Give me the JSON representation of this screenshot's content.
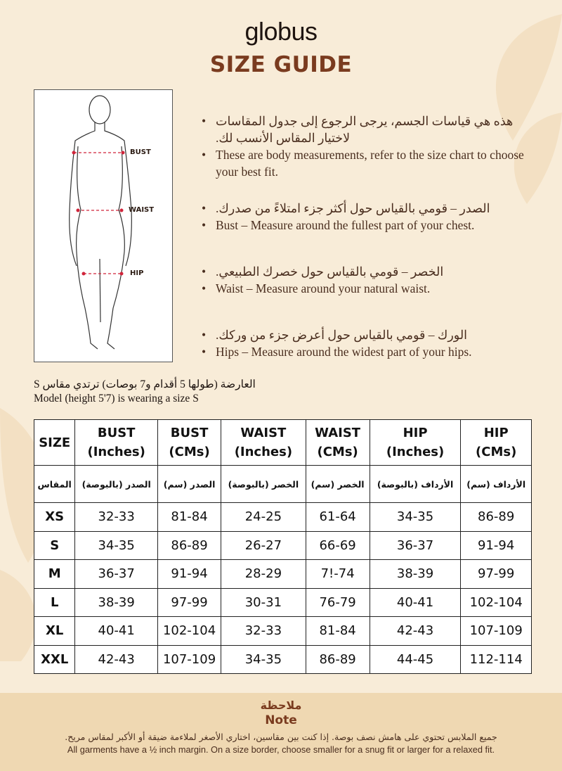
{
  "brand": "globus",
  "title": "SIZE GUIDE",
  "figure": {
    "labels": [
      "BUST",
      "WAIST",
      "HIP"
    ],
    "marker_color": "#d0243a"
  },
  "bullets": [
    {
      "ar": "هذه هي قياسات الجسم، يرجى الرجوع إلى جدول المقاسات لاختيار المقاس الأنسب لك.",
      "en": "These are body measurements, refer to the size chart to choose your best fit."
    },
    {
      "ar": "الصدر – قومي بالقياس حول أكثر جزء امتلاءً من صدرك.",
      "en": "Bust – Measure around the fullest part of your chest."
    },
    {
      "ar": "الخصر – قومي بالقياس حول خصرك الطبيعي.",
      "en": "Waist – Measure around your natural waist."
    },
    {
      "ar": "الورك – قومي بالقياس حول أعرض جزء من وركك.",
      "en": "Hips – Measure around the widest part of your hips."
    }
  ],
  "caption": {
    "ar": "العارضة (طولها 5 أقدام و7 بوصات) ترتدي مقاس S",
    "en": "Model (height 5'7) is wearing a size S"
  },
  "table": {
    "headers": [
      [
        "SIZE",
        ""
      ],
      [
        "BUST",
        "(Inches)"
      ],
      [
        "BUST",
        "(CMs)"
      ],
      [
        "WAIST",
        "(Inches)"
      ],
      [
        "WAIST",
        "(CMs)"
      ],
      [
        "HIP",
        "(Inches)"
      ],
      [
        "HIP",
        "(CMs)"
      ]
    ],
    "headers_ar": [
      "المقاس",
      "الصدر (بالبوصة)",
      "الصدر (سم)",
      "الخصر (بالبوصة)",
      "الخصر (سم)",
      "الأرداف (بالبوصة)",
      "الأرداف (سم)"
    ],
    "rows": [
      [
        "XS",
        "32-33",
        "81-84",
        "24-25",
        "61-64",
        "34-35",
        "86-89"
      ],
      [
        "S",
        "34-35",
        "86-89",
        "26-27",
        "66-69",
        "36-37",
        "91-94"
      ],
      [
        "M",
        "36-37",
        "91-94",
        "28-29",
        "7!-74",
        "38-39",
        "97-99"
      ],
      [
        "L",
        "38-39",
        "97-99",
        "30-31",
        "76-79",
        "40-41",
        "102-104"
      ],
      [
        "XL",
        "40-41",
        "102-104",
        "32-33",
        "81-84",
        "42-43",
        "107-109"
      ],
      [
        "XXL",
        "42-43",
        "107-109",
        "34-35",
        "86-89",
        "44-45",
        "112-114"
      ]
    ]
  },
  "note": {
    "title_ar": "ملاحظة",
    "title_en": "Note",
    "text_ar": "جميع الملابس تحتوي على هامش نصف بوصة. إذا كنت بين مقاسين، اختاري الأصغر لملاءمة ضيقة أو الأكبر لمقاس مريح.",
    "text_en": "All garments have a ½ inch margin. On a size border, choose smaller for a snug fit or larger for a relaxed fit."
  },
  "colors": {
    "background": "#f8ecd8",
    "accent": "#7a3b1f",
    "note_band": "#efd8b2"
  }
}
